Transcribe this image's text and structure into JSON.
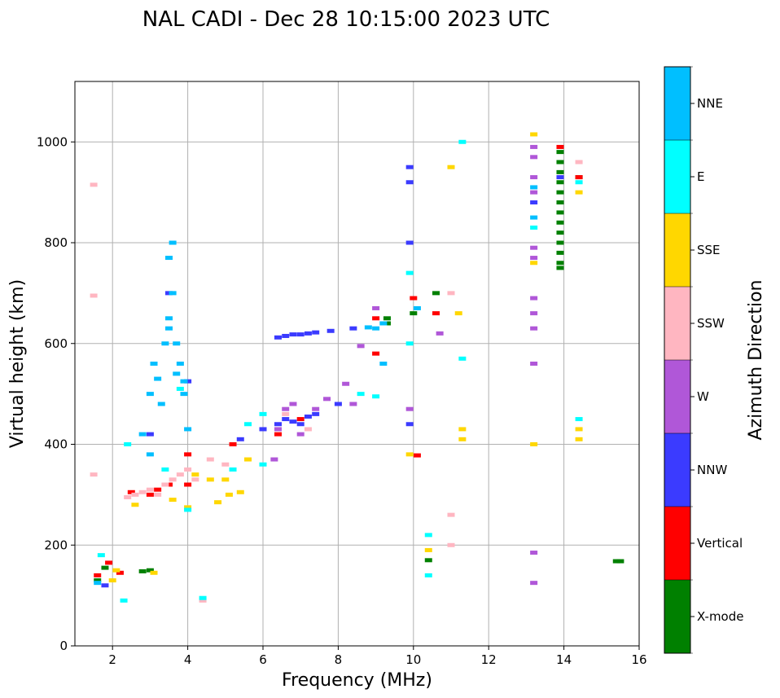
{
  "chart_data": {
    "type": "scatter",
    "title": "NAL CADI - Dec 28 10:15:00 2023 UTC",
    "xlabel": "Frequency (MHz)",
    "ylabel": "Virtual height (km)",
    "xlim": [
      1,
      16
    ],
    "ylim": [
      0,
      1120
    ],
    "xticks": [
      2,
      4,
      6,
      8,
      10,
      12,
      14,
      16
    ],
    "yticks": [
      0,
      200,
      400,
      600,
      800,
      1000
    ],
    "grid": true,
    "colorbar": {
      "label": "Azimuth Direction",
      "categories": [
        {
          "name": "X-mode",
          "color": "#008000"
        },
        {
          "name": "Vertical",
          "color": "#ff0000"
        },
        {
          "name": "NNW",
          "color": "#3b3bff"
        },
        {
          "name": "W",
          "color": "#b057d8"
        },
        {
          "name": "SSW",
          "color": "#ffb6c1"
        },
        {
          "name": "SSE",
          "color": "#ffd700"
        },
        {
          "name": "E",
          "color": "#00ffff"
        },
        {
          "name": "NNE",
          "color": "#00bfff"
        }
      ]
    },
    "series": [
      {
        "name": "X-mode",
        "points": [
          [
            1.6,
            130
          ],
          [
            1.8,
            155
          ],
          [
            2.8,
            148
          ],
          [
            3.0,
            150
          ],
          [
            9.3,
            650
          ],
          [
            9.3,
            640
          ],
          [
            10.0,
            660
          ],
          [
            10.6,
            700
          ],
          [
            10.4,
            170
          ],
          [
            13.9,
            980
          ],
          [
            13.9,
            960
          ],
          [
            13.9,
            940
          ],
          [
            13.9,
            920
          ],
          [
            13.9,
            900
          ],
          [
            13.9,
            880
          ],
          [
            13.9,
            860
          ],
          [
            13.9,
            840
          ],
          [
            13.9,
            820
          ],
          [
            13.9,
            800
          ],
          [
            13.9,
            780
          ],
          [
            13.9,
            760
          ],
          [
            13.9,
            750
          ],
          [
            14.4,
            930
          ],
          [
            15.4,
            168
          ],
          [
            15.5,
            168
          ]
        ]
      },
      {
        "name": "Vertical",
        "points": [
          [
            1.6,
            140
          ],
          [
            1.9,
            165
          ],
          [
            2.2,
            145
          ],
          [
            2.5,
            305
          ],
          [
            3.0,
            300
          ],
          [
            3.2,
            310
          ],
          [
            3.5,
            320
          ],
          [
            4.0,
            380
          ],
          [
            4.0,
            320
          ],
          [
            5.2,
            400
          ],
          [
            6.4,
            420
          ],
          [
            7.0,
            450
          ],
          [
            9.0,
            580
          ],
          [
            9.0,
            650
          ],
          [
            10.1,
            378
          ],
          [
            10.0,
            690
          ],
          [
            10.6,
            660
          ],
          [
            13.9,
            990
          ],
          [
            14.4,
            930
          ]
        ]
      },
      {
        "name": "NNW",
        "points": [
          [
            1.8,
            120
          ],
          [
            3.0,
            420
          ],
          [
            3.5,
            700
          ],
          [
            4.0,
            525
          ],
          [
            5.4,
            410
          ],
          [
            6.0,
            430
          ],
          [
            6.4,
            612
          ],
          [
            6.6,
            615
          ],
          [
            6.8,
            618
          ],
          [
            7.0,
            618
          ],
          [
            7.2,
            620
          ],
          [
            7.4,
            622
          ],
          [
            7.8,
            625
          ],
          [
            8.4,
            630
          ],
          [
            6.4,
            440
          ],
          [
            6.6,
            450
          ],
          [
            6.8,
            445
          ],
          [
            7.0,
            440
          ],
          [
            7.2,
            455
          ],
          [
            7.4,
            460
          ],
          [
            8.0,
            480
          ],
          [
            9.9,
            800
          ],
          [
            9.9,
            950
          ],
          [
            9.9,
            920
          ],
          [
            9.9,
            440
          ],
          [
            13.2,
            880
          ],
          [
            13.9,
            930
          ]
        ]
      },
      {
        "name": "W",
        "points": [
          [
            6.3,
            370
          ],
          [
            6.4,
            430
          ],
          [
            6.6,
            470
          ],
          [
            6.8,
            480
          ],
          [
            7.0,
            420
          ],
          [
            7.4,
            470
          ],
          [
            7.7,
            490
          ],
          [
            8.2,
            520
          ],
          [
            8.4,
            480
          ],
          [
            8.6,
            595
          ],
          [
            9.0,
            670
          ],
          [
            9.9,
            470
          ],
          [
            10.7,
            620
          ],
          [
            13.2,
            990
          ],
          [
            13.2,
            970
          ],
          [
            13.2,
            930
          ],
          [
            13.2,
            900
          ],
          [
            13.2,
            790
          ],
          [
            13.2,
            770
          ],
          [
            13.2,
            690
          ],
          [
            13.2,
            660
          ],
          [
            13.2,
            630
          ],
          [
            13.2,
            560
          ],
          [
            13.2,
            185
          ],
          [
            13.2,
            125
          ]
        ]
      },
      {
        "name": "SSW",
        "points": [
          [
            1.5,
            915
          ],
          [
            1.5,
            695
          ],
          [
            1.5,
            340
          ],
          [
            2.4,
            295
          ],
          [
            2.6,
            300
          ],
          [
            2.8,
            305
          ],
          [
            3.0,
            310
          ],
          [
            3.2,
            300
          ],
          [
            3.4,
            320
          ],
          [
            3.6,
            330
          ],
          [
            3.8,
            340
          ],
          [
            4.0,
            350
          ],
          [
            4.2,
            330
          ],
          [
            4.4,
            90
          ],
          [
            4.6,
            370
          ],
          [
            5.0,
            360
          ],
          [
            6.6,
            460
          ],
          [
            7.2,
            430
          ],
          [
            11.0,
            700
          ],
          [
            11.0,
            260
          ],
          [
            11.0,
            200
          ],
          [
            14.4,
            960
          ]
        ]
      },
      {
        "name": "SSE",
        "points": [
          [
            2.0,
            130
          ],
          [
            2.1,
            150
          ],
          [
            2.6,
            280
          ],
          [
            3.1,
            145
          ],
          [
            3.6,
            290
          ],
          [
            4.0,
            275
          ],
          [
            4.2,
            340
          ],
          [
            4.6,
            330
          ],
          [
            4.8,
            285
          ],
          [
            5.0,
            330
          ],
          [
            5.1,
            300
          ],
          [
            5.4,
            305
          ],
          [
            5.6,
            370
          ],
          [
            9.9,
            380
          ],
          [
            10.4,
            190
          ],
          [
            11.0,
            950
          ],
          [
            11.2,
            660
          ],
          [
            11.3,
            430
          ],
          [
            11.3,
            410
          ],
          [
            13.2,
            1015
          ],
          [
            13.2,
            760
          ],
          [
            13.2,
            400
          ],
          [
            14.4,
            900
          ],
          [
            14.4,
            430
          ],
          [
            14.4,
            410
          ]
        ]
      },
      {
        "name": "E",
        "points": [
          [
            1.7,
            180
          ],
          [
            2.3,
            90
          ],
          [
            2.4,
            400
          ],
          [
            3.4,
            350
          ],
          [
            3.8,
            510
          ],
          [
            4.0,
            270
          ],
          [
            4.4,
            95
          ],
          [
            5.2,
            350
          ],
          [
            5.6,
            440
          ],
          [
            6.0,
            360
          ],
          [
            6.0,
            460
          ],
          [
            8.6,
            500
          ],
          [
            9.0,
            495
          ],
          [
            9.9,
            740
          ],
          [
            9.9,
            600
          ],
          [
            10.4,
            220
          ],
          [
            10.4,
            140
          ],
          [
            11.3,
            1000
          ],
          [
            11.3,
            570
          ],
          [
            13.2,
            830
          ],
          [
            14.4,
            920
          ],
          [
            14.4,
            450
          ]
        ]
      },
      {
        "name": "NNE",
        "points": [
          [
            1.6,
            125
          ],
          [
            2.8,
            420
          ],
          [
            3.0,
            380
          ],
          [
            3.0,
            500
          ],
          [
            3.1,
            560
          ],
          [
            3.2,
            530
          ],
          [
            3.3,
            480
          ],
          [
            3.4,
            600
          ],
          [
            3.5,
            630
          ],
          [
            3.5,
            650
          ],
          [
            3.5,
            770
          ],
          [
            3.6,
            700
          ],
          [
            3.6,
            800
          ],
          [
            3.7,
            600
          ],
          [
            3.7,
            540
          ],
          [
            3.8,
            560
          ],
          [
            3.9,
            500
          ],
          [
            3.9,
            525
          ],
          [
            4.0,
            430
          ],
          [
            8.8,
            632
          ],
          [
            9.0,
            630
          ],
          [
            9.2,
            640
          ],
          [
            9.2,
            560
          ],
          [
            10.1,
            670
          ],
          [
            13.2,
            850
          ],
          [
            13.2,
            910
          ]
        ]
      }
    ]
  }
}
